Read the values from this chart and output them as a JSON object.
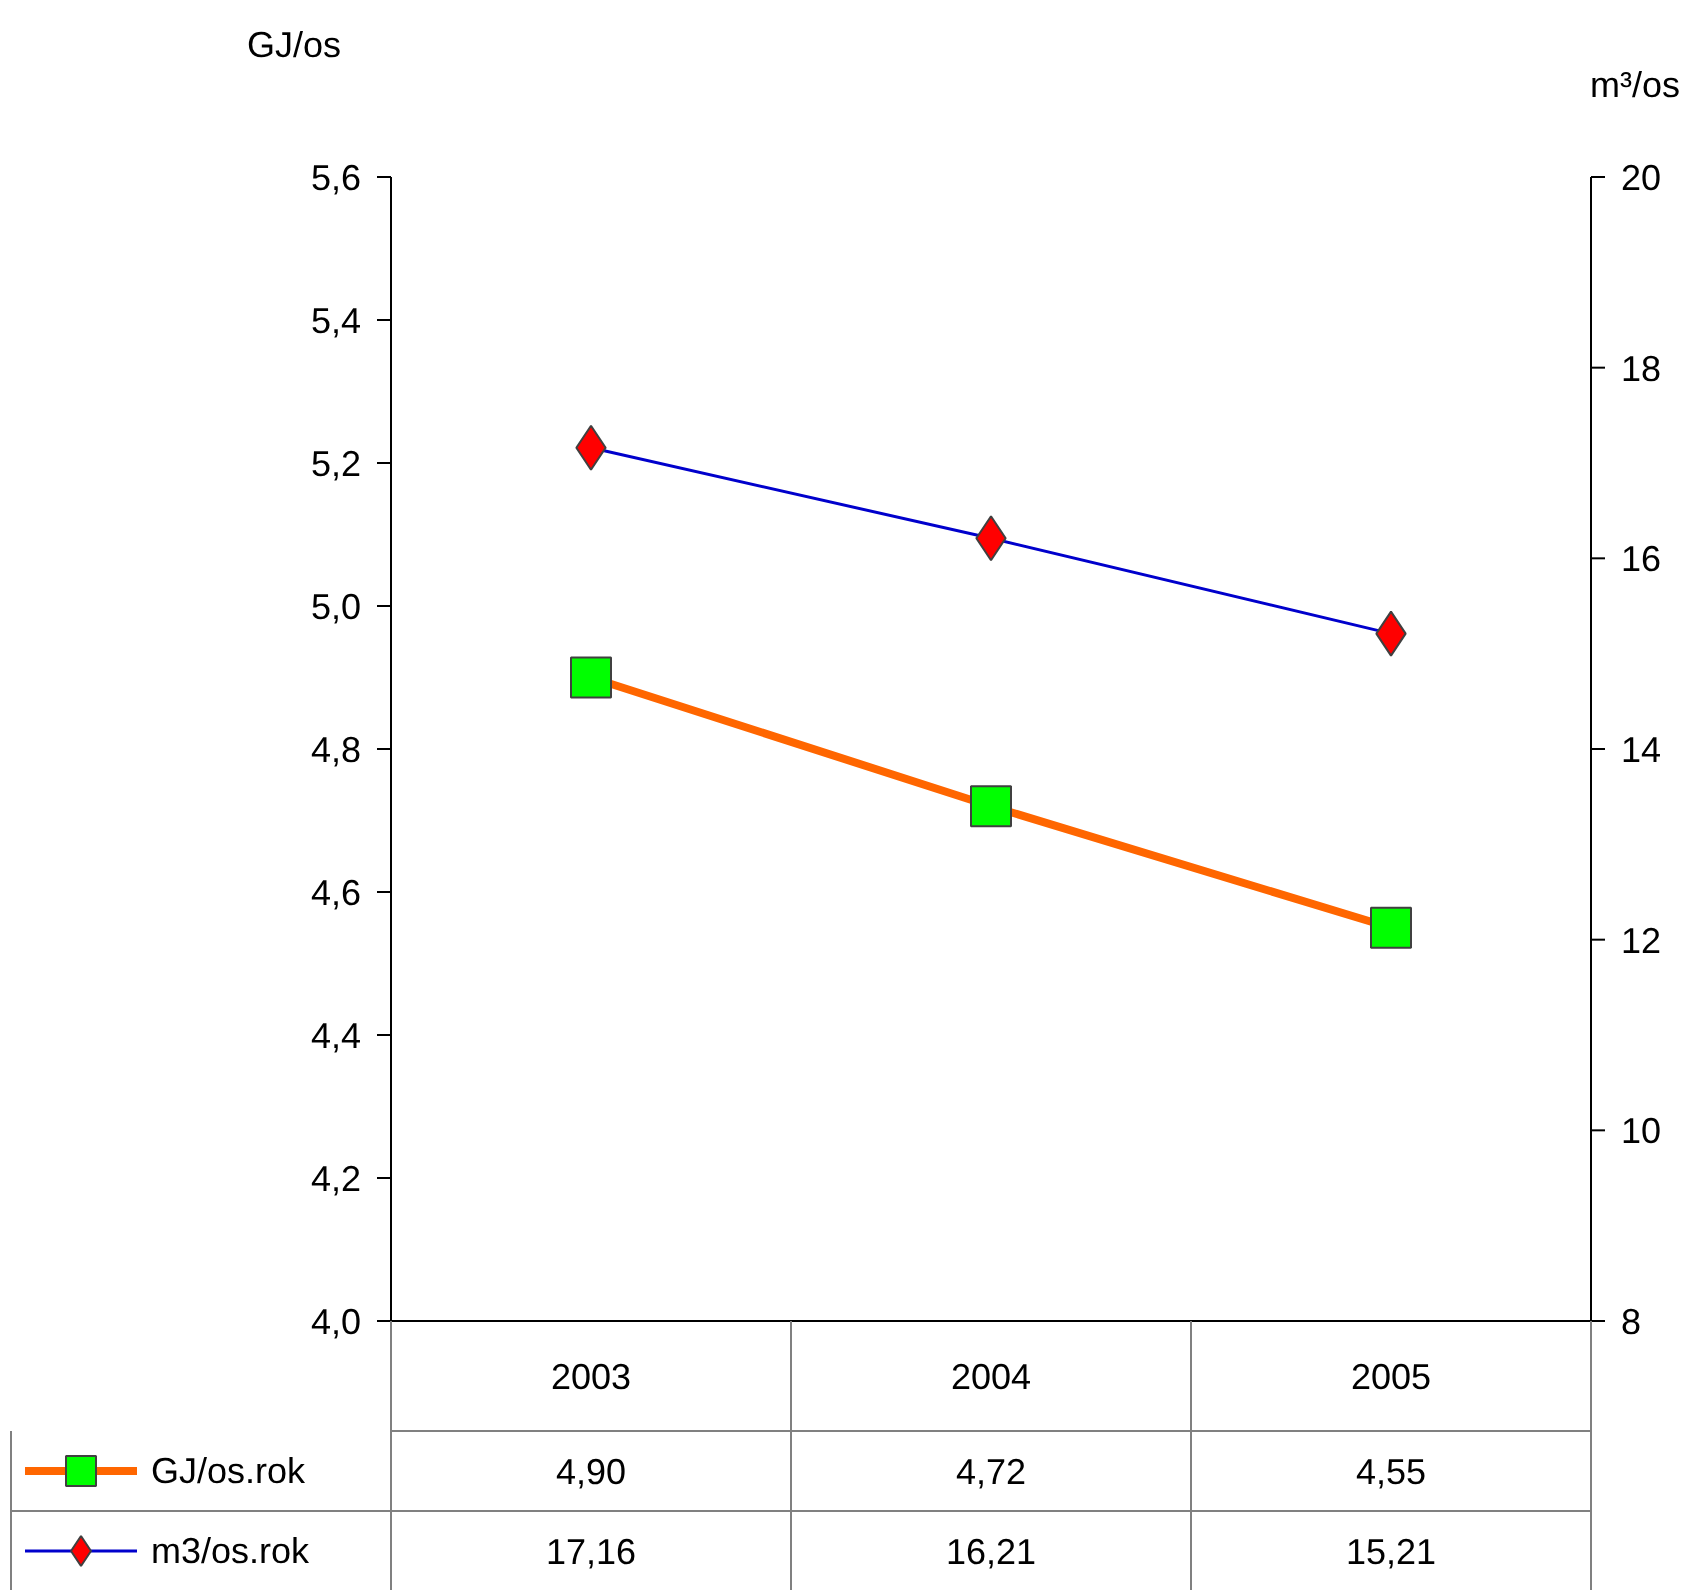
{
  "chart_data": {
    "type": "line",
    "ylabel": "GJ/os",
    "y2label": "m³/os",
    "categories": [
      "2003",
      "2004",
      "2005"
    ],
    "series": [
      {
        "name": "GJ/os.rok",
        "color": "#ff6600",
        "colors": [
          "#00ff00",
          "#00ff00",
          "#00ff00"
        ],
        "marker": "square",
        "values": [
          4.9,
          4.72,
          4.55
        ],
        "value_labels": [
          "4,90",
          "4,72",
          "4,55"
        ]
      },
      {
        "name": "m3/os.rok",
        "color": "#0000cc",
        "colors": [
          "#ff0000",
          "#ff0000",
          "#ff0000"
        ],
        "marker": "diamond",
        "axis": "y2",
        "values": [
          17.16,
          16.21,
          15.21
        ],
        "value_labels": [
          "17,16",
          "16,21",
          "15,21"
        ]
      }
    ],
    "ylim": [
      4.0,
      5.6
    ],
    "yticks": [
      {
        "value": 4.0,
        "label": "4,0"
      },
      {
        "value": 4.2,
        "label": "4,2"
      },
      {
        "value": 4.4,
        "label": "4,4"
      },
      {
        "value": 4.6,
        "label": "4,6"
      },
      {
        "value": 4.8,
        "label": "4,8"
      },
      {
        "value": 5.0,
        "label": "5,0"
      },
      {
        "value": 5.2,
        "label": "5,2"
      },
      {
        "value": 5.4,
        "label": "5,4"
      },
      {
        "value": 5.6,
        "label": "5,6"
      }
    ],
    "y2lim": [
      8,
      20
    ],
    "y2ticks": [
      8,
      10,
      12,
      14,
      16,
      18,
      20
    ],
    "grid": false,
    "legend": "bottom"
  }
}
